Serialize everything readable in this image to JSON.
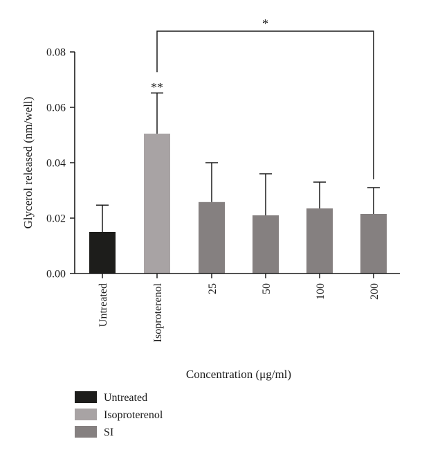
{
  "chart_data": {
    "type": "bar",
    "categories": [
      "Untreated",
      "Isoproterenol",
      "25",
      "50",
      "100",
      "200"
    ],
    "values": [
      0.015,
      0.0505,
      0.0258,
      0.021,
      0.0235,
      0.0215
    ],
    "errors": [
      0.0097,
      0.0147,
      0.0142,
      0.015,
      0.0095,
      0.0095
    ],
    "bar_groups": [
      "Untreated",
      "Isoproterenol",
      "SI",
      "SI",
      "SI",
      "SI"
    ],
    "xlabel": "Concentration (μg/ml)",
    "ylabel": "Glycerol released (nm/well)",
    "ylim": [
      0,
      0.08
    ],
    "yticks": [
      "0.00",
      "0.02",
      "0.04",
      "0.06",
      "0.08"
    ],
    "grid": false,
    "legend_position": "bottom-left",
    "legend": [
      {
        "label": "Untreated",
        "color": "#1d1d1b"
      },
      {
        "label": "Isoproterenol",
        "color": "#a8a3a4"
      },
      {
        "label": "SI",
        "color": "#858080"
      }
    ],
    "annotations": {
      "isoproterenol_mark": "**",
      "bracket_mark": "*",
      "bracket_from": "Isoproterenol",
      "bracket_to": "200"
    }
  }
}
